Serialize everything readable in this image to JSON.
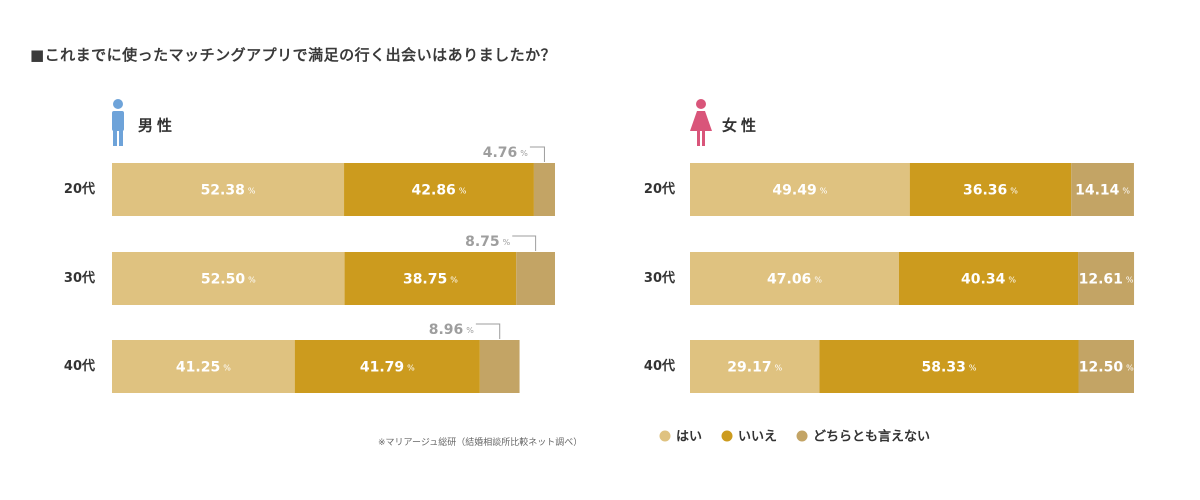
{
  "title": "■これまでに使ったマッチングアプリで満足の行く出会いはありましたか？",
  "note": "※マリアージュ総研（結婚相談所比較ネット調べ）",
  "unit": "%",
  "colors": {
    "yes": "#dfc280",
    "no": "#cc9b1e",
    "neither": "#c3a465",
    "male_icon": "#6ea3d9",
    "female_icon": "#d9557a",
    "callout": "#9e9e9e"
  },
  "chart_data": [
    {
      "type": "bar",
      "orientation": "horizontal",
      "stacked": true,
      "title": "男性",
      "icon": "male-icon",
      "categories": [
        "20代",
        "30代",
        "40代"
      ],
      "series": [
        {
          "name": "はい",
          "values": [
            52.38,
            52.5,
            41.25
          ]
        },
        {
          "name": "いいえ",
          "values": [
            42.86,
            38.75,
            41.79
          ]
        },
        {
          "name": "どちらとも言えない",
          "values": [
            4.76,
            8.75,
            8.96
          ]
        }
      ],
      "labels": [
        [
          "52.38",
          "42.86",
          "4.76"
        ],
        [
          "52.50",
          "38.75",
          "8.75"
        ],
        [
          "41.25",
          "41.79",
          "8.96"
        ]
      ],
      "xlim": [
        0,
        100
      ]
    },
    {
      "type": "bar",
      "orientation": "horizontal",
      "stacked": true,
      "title": "女性",
      "icon": "female-icon",
      "categories": [
        "20代",
        "30代",
        "40代"
      ],
      "series": [
        {
          "name": "はい",
          "values": [
            49.49,
            47.06,
            29.17
          ]
        },
        {
          "name": "いいえ",
          "values": [
            36.36,
            40.34,
            58.33
          ]
        },
        {
          "name": "どちらとも言えない",
          "values": [
            14.14,
            12.61,
            12.5
          ]
        }
      ],
      "labels": [
        [
          "49.49",
          "36.36",
          "14.14"
        ],
        [
          "47.06",
          "40.34",
          "12.61"
        ],
        [
          "29.17",
          "58.33",
          "12.50"
        ]
      ],
      "xlim": [
        0,
        100
      ]
    }
  ],
  "legend": [
    {
      "key": "yes",
      "label": "はい"
    },
    {
      "key": "no",
      "label": "いいえ"
    },
    {
      "key": "neither",
      "label": "どちらとも言えない"
    }
  ]
}
